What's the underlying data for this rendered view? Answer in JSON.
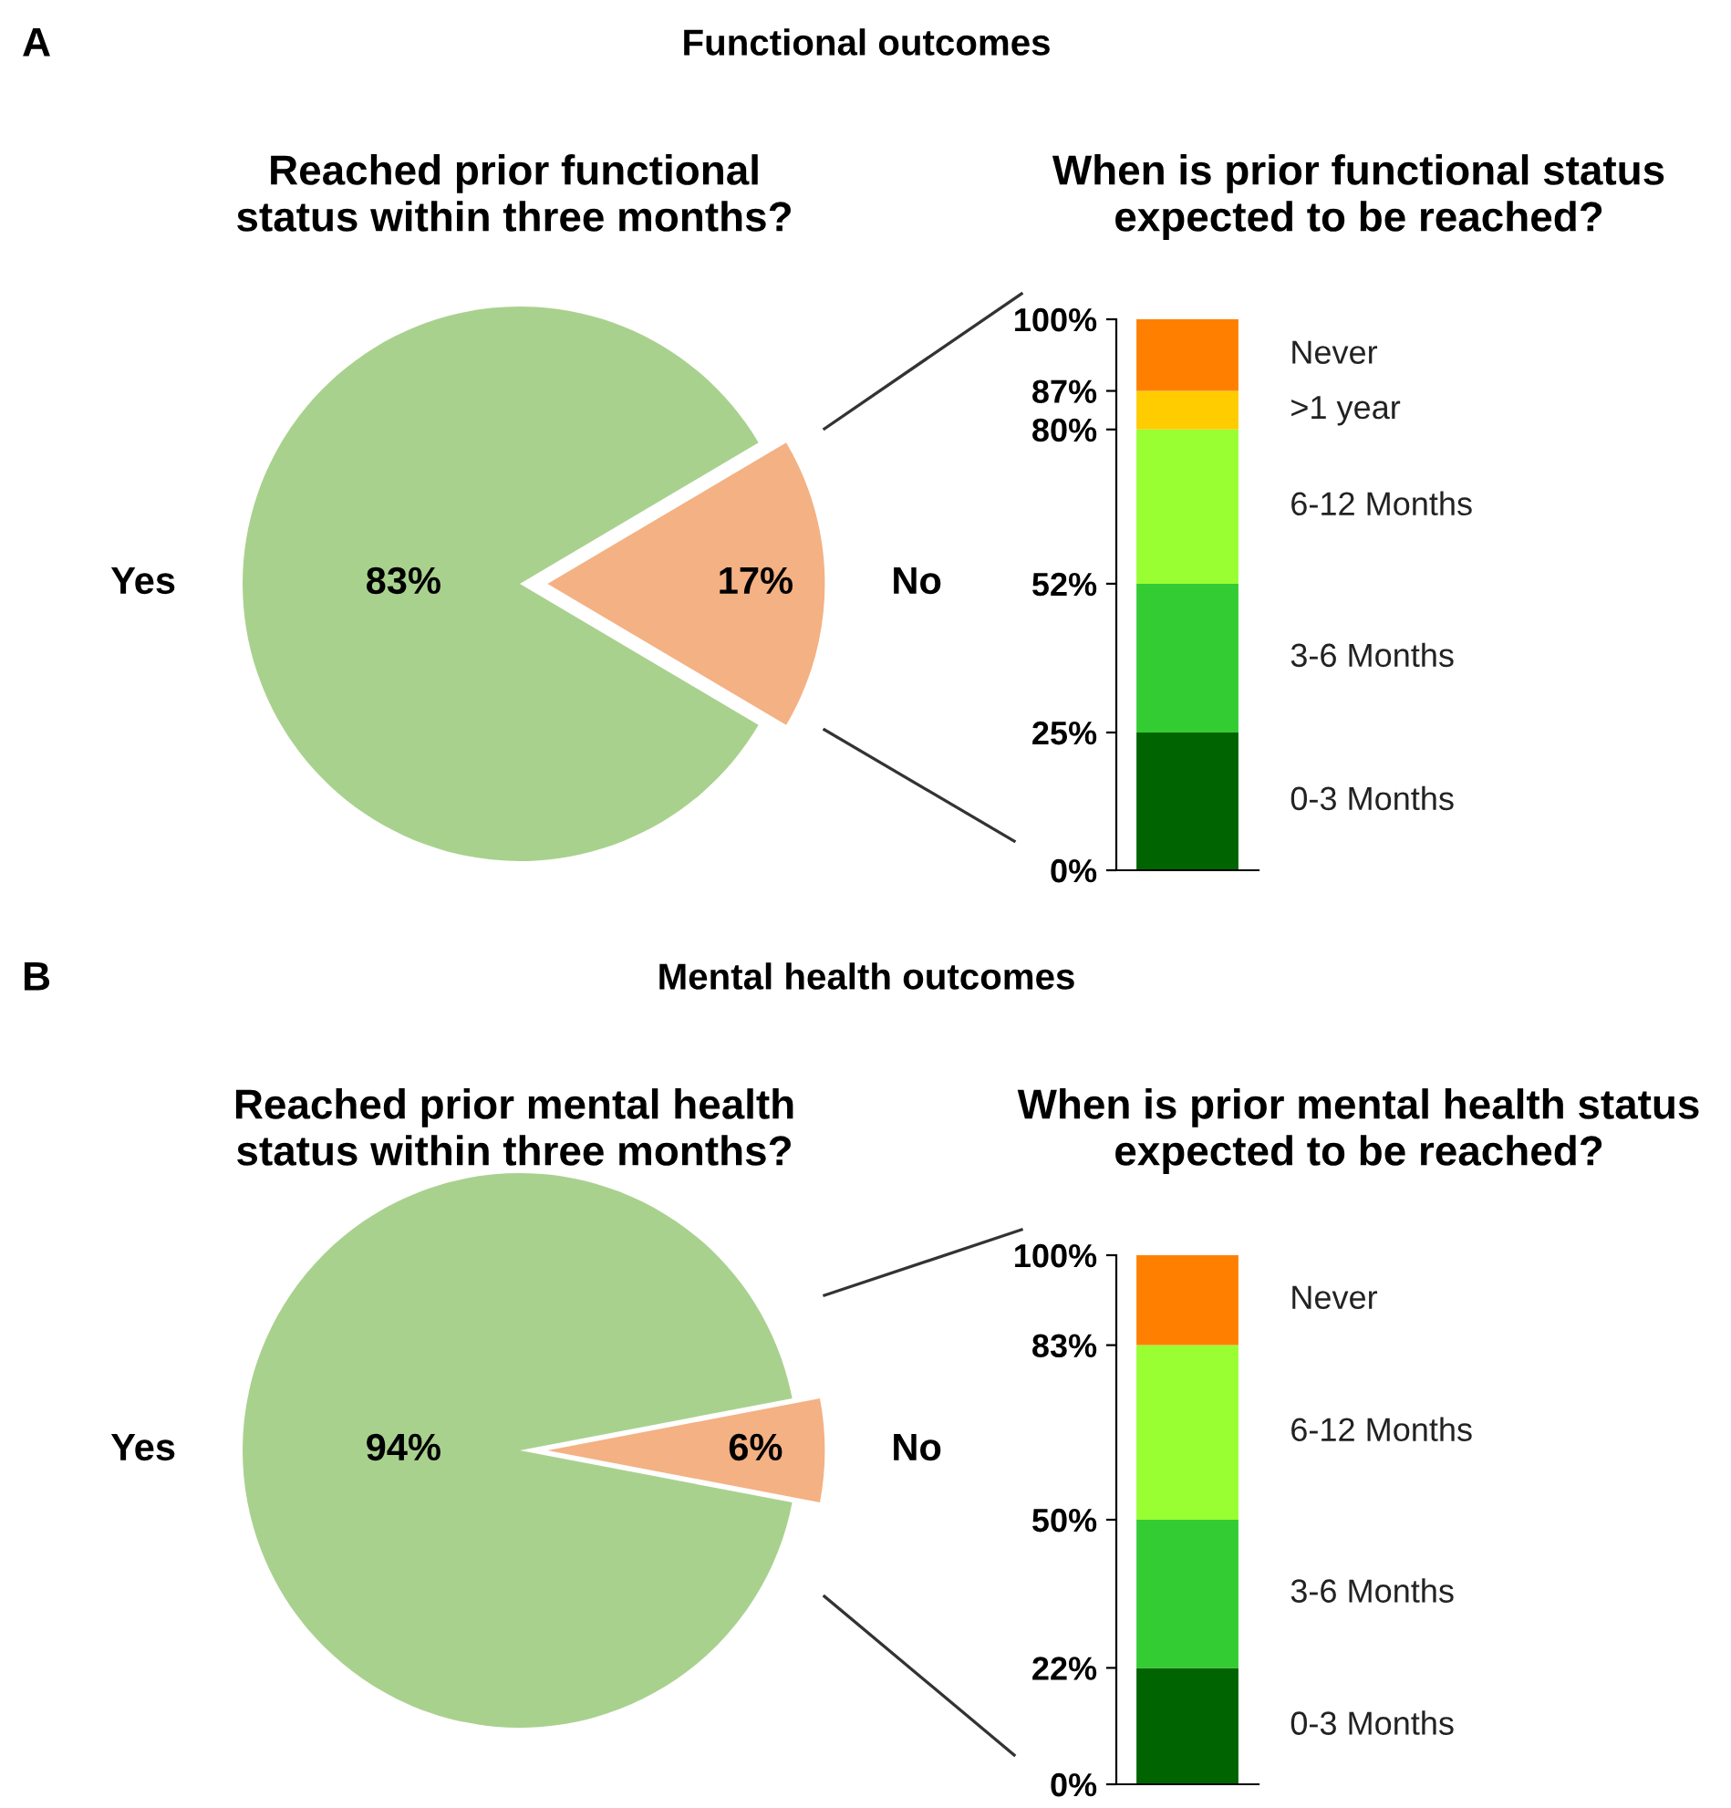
{
  "chart_data": [
    {
      "type": "pie",
      "title": "Reached prior functional status within three months?",
      "annotations": [
        "A",
        "Functional outcomes"
      ],
      "categories": [
        "Yes",
        "No"
      ],
      "values": [
        83,
        17
      ],
      "value_labels": [
        "83%",
        "17%"
      ],
      "colors": [
        "#a9d18e",
        "#f4b183"
      ]
    },
    {
      "type": "bar",
      "title": "When is prior functional status expected to be reached?",
      "stacked": true,
      "categories": [
        null
      ],
      "ylim": [
        0,
        100
      ],
      "yticks": [
        {
          "value": 0,
          "label": "0%"
        },
        {
          "value": 25,
          "label": "25%"
        },
        {
          "value": 52,
          "label": "52%"
        },
        {
          "value": 80,
          "label": "80%"
        },
        {
          "value": 87,
          "label": "87%"
        },
        {
          "value": 100,
          "label": "100%"
        }
      ],
      "tick_labels": "y",
      "legend": false,
      "series": [
        {
          "name": "0-3 Months",
          "color": "#006400",
          "values": [
            25
          ]
        },
        {
          "name": "3-6 Months",
          "color": "#33cc33",
          "values": [
            27
          ]
        },
        {
          "name": "6-12 Months",
          "color": "#99ff33",
          "values": [
            28
          ]
        },
        {
          "name": ">1 year",
          "color": "#ffcc00",
          "values": [
            7
          ]
        },
        {
          "name": "Never",
          "color": "#ff8000",
          "values": [
            13
          ]
        }
      ]
    },
    {
      "type": "pie",
      "title": "Reached prior mental health status within three months?",
      "annotations": [
        "B",
        "Mental health outcomes"
      ],
      "categories": [
        "Yes",
        "No"
      ],
      "values": [
        94,
        6
      ],
      "value_labels": [
        "94%",
        "6%"
      ],
      "colors": [
        "#a9d18e",
        "#f4b183"
      ]
    },
    {
      "type": "bar",
      "title": "When is prior mental health status expected to be reached?",
      "stacked": true,
      "categories": [
        null
      ],
      "ylim": [
        0,
        100
      ],
      "yticks": [
        {
          "value": 0,
          "label": "0%"
        },
        {
          "value": 22,
          "label": "22%"
        },
        {
          "value": 50,
          "label": "50%"
        },
        {
          "value": 83,
          "label": "83%"
        },
        {
          "value": 100,
          "label": "100%"
        }
      ],
      "tick_labels": "y",
      "legend": false,
      "series": [
        {
          "name": "0-3 Months",
          "color": "#006400",
          "values": [
            22
          ]
        },
        {
          "name": "3-6 Months",
          "color": "#33cc33",
          "values": [
            28
          ]
        },
        {
          "name": "6-12 Months",
          "color": "#99ff33",
          "values": [
            33
          ]
        },
        {
          "name": "Never",
          "color": "#ff8000",
          "values": [
            17
          ]
        }
      ]
    }
  ]
}
